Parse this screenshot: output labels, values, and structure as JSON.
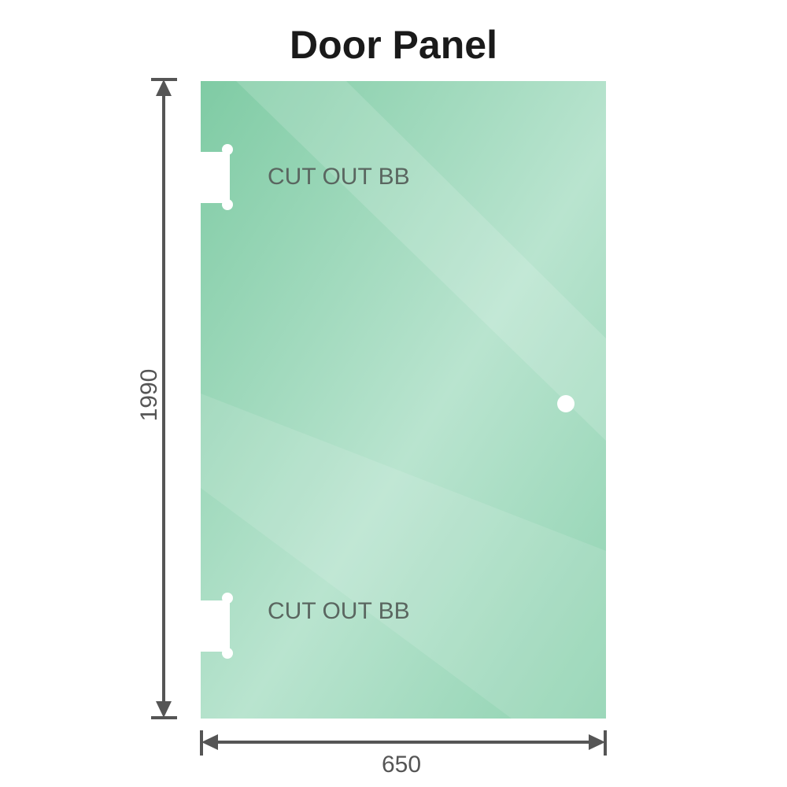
{
  "title": "Door Panel",
  "panel": {
    "color": "#8fd3b0",
    "cutouts": [
      {
        "label": "CUT OUT BB"
      },
      {
        "label": "CUT OUT BB"
      }
    ]
  },
  "dimensions": {
    "width": "650",
    "height": "1990",
    "line_color": "#555555"
  }
}
